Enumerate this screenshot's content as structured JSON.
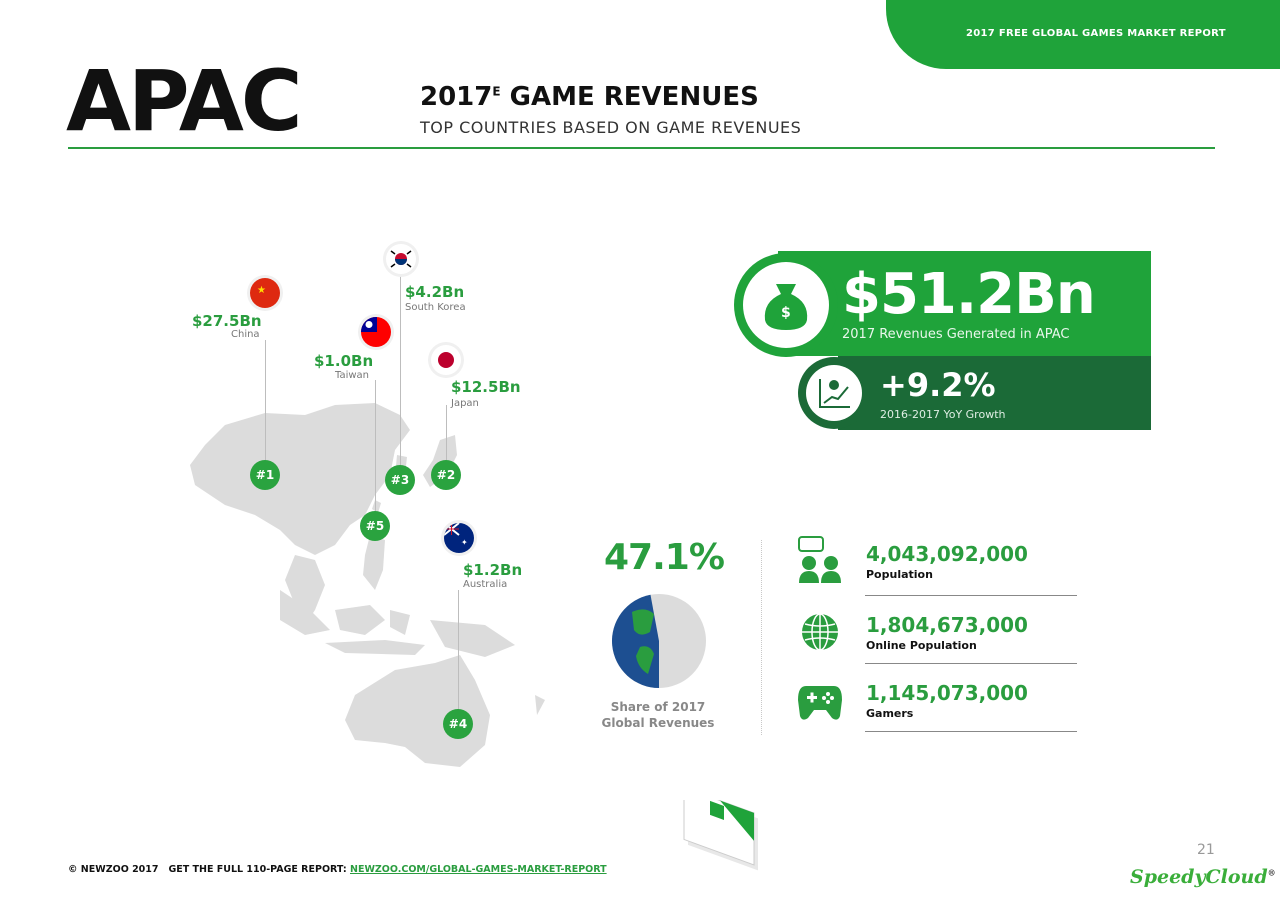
{
  "header": {
    "banner": "2017 FREE GLOBAL GAMES MARKET REPORT",
    "region": "APAC",
    "title_year": "2017",
    "title_sup": "E",
    "title_rest": " GAME REVENUES",
    "subtitle": "TOP COUNTRIES BASED ON GAME REVENUES"
  },
  "countries": [
    {
      "rank": "#1",
      "amount": "$27.5Bn",
      "name": "China"
    },
    {
      "rank": "#2",
      "amount": "$12.5Bn",
      "name": "Japan"
    },
    {
      "rank": "#3",
      "amount": "$4.2Bn",
      "name": "South Korea"
    },
    {
      "rank": "#4",
      "amount": "$1.2Bn",
      "name": "Australia"
    },
    {
      "rank": "#5",
      "amount": "$1.0Bn",
      "name": "Taiwan"
    }
  ],
  "revenue": {
    "amount": "$51.2Bn",
    "label": "2017 Revenues Generated in APAC",
    "growth": "+9.2%",
    "growth_label": "2016-2017 YoY Growth"
  },
  "share": {
    "percent": "47.1%",
    "share_value": 0.471,
    "label_line1": "Share of 2017",
    "label_line2": "Global Revenues"
  },
  "stats": [
    {
      "value": "4,043,092,000",
      "label": "Population",
      "icon": "people-chat-icon"
    },
    {
      "value": "1,804,673,000",
      "label": "Online Population",
      "icon": "globe-icon"
    },
    {
      "value": "1,145,073,000",
      "label": "Gamers",
      "icon": "gamepad-icon"
    }
  ],
  "footer": {
    "copyright": "© NEWZOO 2017",
    "cta": "GET THE FULL 110-PAGE REPORT:",
    "link": "NEWZOO.COM/GLOBAL-GAMES-MARKET-REPORT",
    "page": "21",
    "brand": "SpeedyCloud",
    "brand_mark": "®"
  },
  "colors": {
    "green": "#1fa33a",
    "dark_green": "#1b6a37",
    "map_grey": "#dadada",
    "globe_blue": "#1d4f91"
  }
}
